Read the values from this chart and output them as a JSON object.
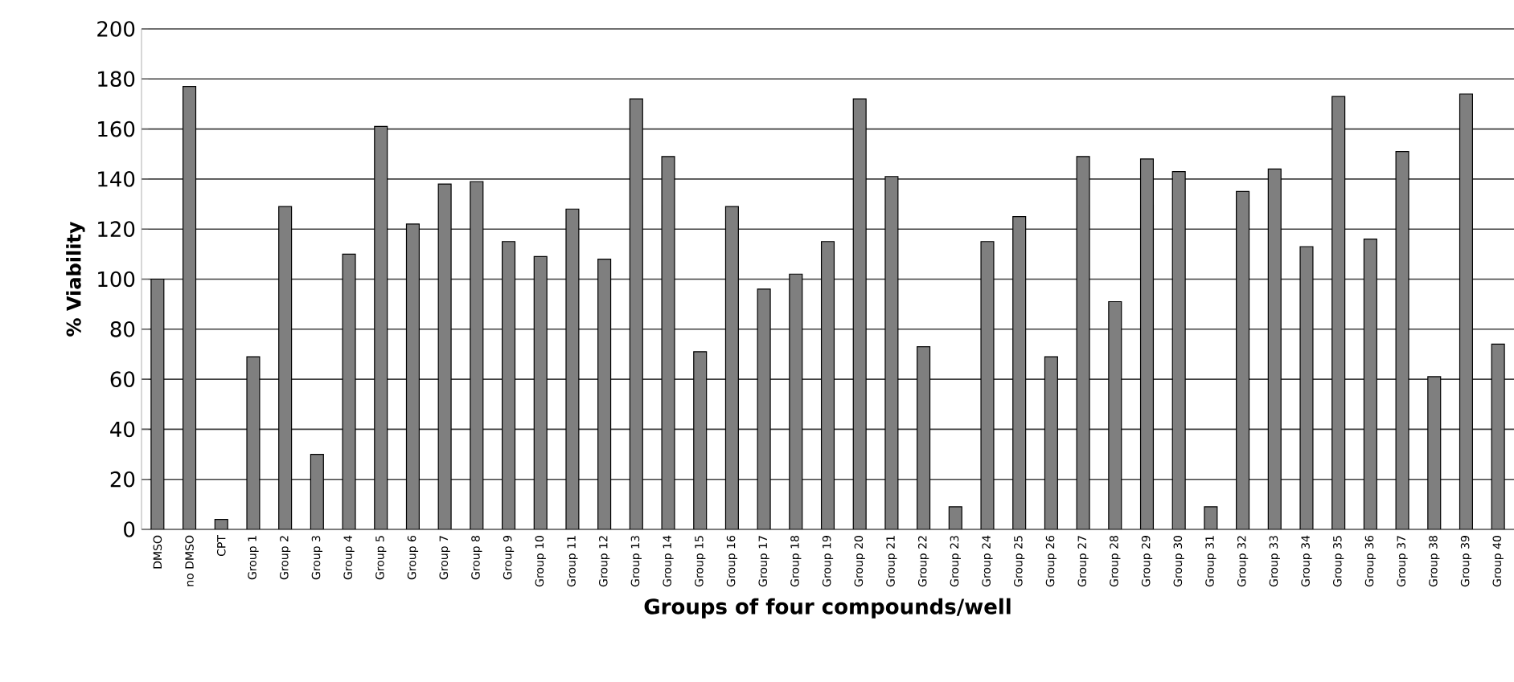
{
  "chart_data": {
    "type": "bar",
    "xlabel": "Groups of four compounds/well",
    "ylabel": "% Viability",
    "categories": [
      "DMSO",
      "no DMSO",
      "CPT",
      "Group 1",
      "Group 2",
      "Group 3",
      "Group 4",
      "Group 5",
      "Group 6",
      "Group 7",
      "Group 8",
      "Group 9",
      "Group 10",
      "Group 11",
      "Group 12",
      "Group 13",
      "Group 14",
      "Group 15",
      "Group 16",
      "Group 17",
      "Group 18",
      "Group 19",
      "Group 20",
      "Group 21",
      "Group 22",
      "Group 23",
      "Group 24",
      "Group 25",
      "Group 26",
      "Group 27",
      "Group 28",
      "Group 29",
      "Group 30",
      "Group 31",
      "Group 32",
      "Group 33",
      "Group 34",
      "Group 35",
      "Group 36",
      "Group 37",
      "Group 38",
      "Group 39",
      "Group 40"
    ],
    "values": [
      100,
      177,
      4,
      69,
      129,
      30,
      110,
      161,
      122,
      138,
      139,
      115,
      109,
      128,
      108,
      172,
      149,
      71,
      129,
      96,
      102,
      115,
      172,
      141,
      73,
      9,
      115,
      125,
      69,
      149,
      91,
      148,
      143,
      9,
      135,
      144,
      113,
      173,
      116,
      151,
      61,
      174,
      74
    ],
    "color": "#7f7f7f",
    "ylim": [
      0,
      200
    ],
    "yticks": [
      0,
      20,
      40,
      60,
      80,
      100,
      120,
      140,
      160,
      180,
      200
    ],
    "grid": "y"
  }
}
